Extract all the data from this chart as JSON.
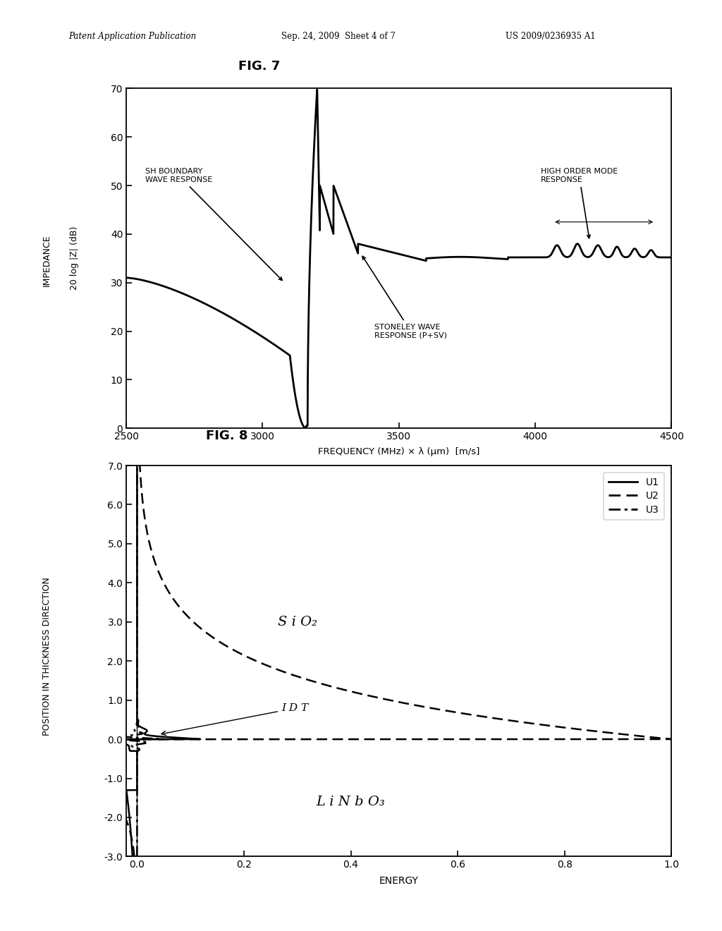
{
  "header_left": "Patent Application Publication",
  "header_mid": "Sep. 24, 2009  Sheet 4 of 7",
  "header_right": "US 2009/0236935 A1",
  "fig7_title": "FIG. 7",
  "fig8_title": "FIG. 8",
  "fig7_xlabel": "FREQUENCY (MHz) × λ (μm)  [m/s]",
  "fig7_ylabel_top": "20 log |Z| (dB)",
  "fig7_ylabel_bot": "IMPEDANCE",
  "fig7_xlim": [
    2500,
    4500
  ],
  "fig7_ylim": [
    0,
    70
  ],
  "fig7_xticks": [
    2500,
    3000,
    3500,
    4000,
    4500
  ],
  "fig7_yticks": [
    0,
    10,
    20,
    30,
    40,
    50,
    60,
    70
  ],
  "fig8_xlabel": "ENERGY",
  "fig8_ylabel": "POSITION IN THICKNESS DIRECTION",
  "fig8_xlim": [
    -0.02,
    1.0
  ],
  "fig8_ylim": [
    -3.0,
    7.0
  ],
  "fig8_xticks": [
    0.0,
    0.2,
    0.4,
    0.6,
    0.8,
    1.0
  ],
  "fig8_yticks": [
    -3.0,
    -2.0,
    -1.0,
    0.0,
    1.0,
    2.0,
    3.0,
    4.0,
    5.0,
    6.0,
    7.0
  ],
  "background_color": "#ffffff",
  "line_color": "#000000",
  "sio2_label": "S i O₂",
  "linbo3_label": "L i N b O₃",
  "idt_label": "I D T"
}
